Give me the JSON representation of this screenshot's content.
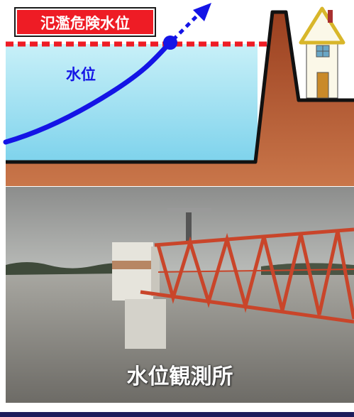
{
  "diagram": {
    "danger_level_label": "氾濫危険水位",
    "water_level_label": "水位",
    "colors": {
      "danger_red": "#ee1c25",
      "water_line_blue": "#1414e6",
      "ground_brown": "#a84d28"
    }
  },
  "photo": {
    "caption": "水位観測所"
  }
}
